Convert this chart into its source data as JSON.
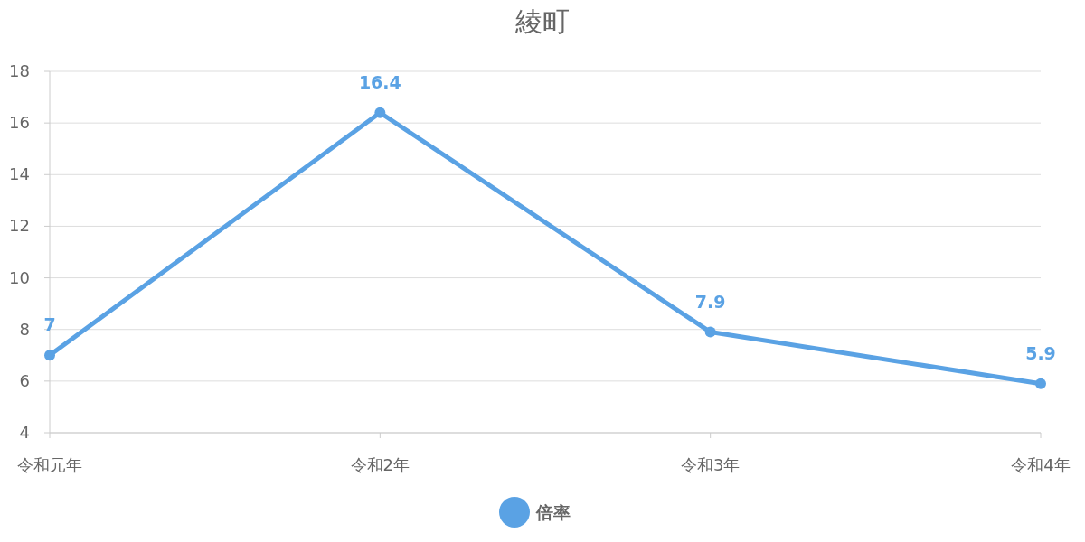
{
  "chart_data": {
    "type": "line",
    "title": "綾町",
    "categories": [
      "令和元年",
      "令和2年",
      "令和3年",
      "令和4年"
    ],
    "series": [
      {
        "name": "倍率",
        "color": "#5aa2e4",
        "values": [
          7,
          16.4,
          7.9,
          5.9
        ]
      }
    ],
    "ylim": [
      4,
      18
    ],
    "yticks": [
      4,
      6,
      8,
      10,
      12,
      14,
      16,
      18
    ],
    "grid": "y",
    "legend": "bottom",
    "marker": "circle",
    "data_labels": true
  }
}
